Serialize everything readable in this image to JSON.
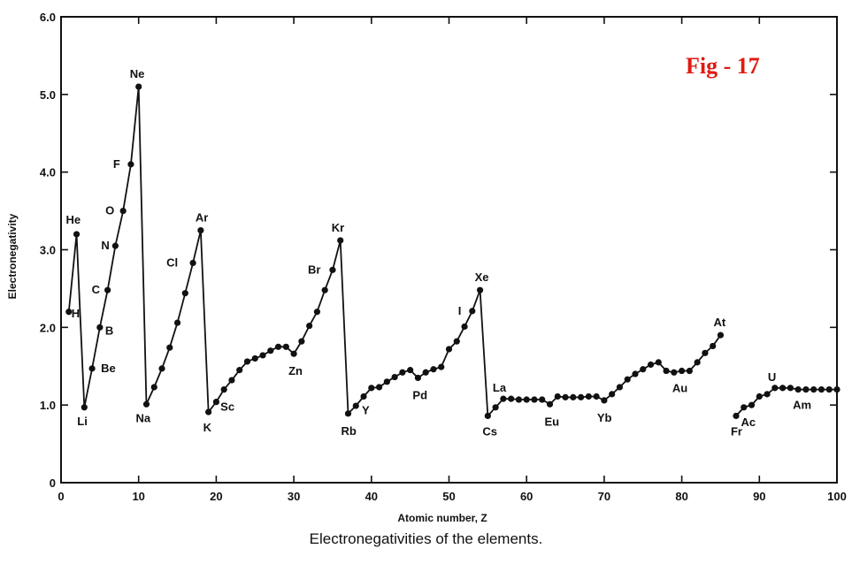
{
  "figure_label": "Fig - 17",
  "caption": "Electronegativities of the elements.",
  "chart_data": {
    "type": "line",
    "title": "",
    "xlabel": "Atomic number, Z",
    "ylabel": "Electronegativity",
    "xlim": [
      0,
      100
    ],
    "ylim": [
      0,
      6.0
    ],
    "x_ticks": [
      0,
      10,
      20,
      30,
      40,
      50,
      60,
      70,
      80,
      90,
      100
    ],
    "y_ticks": [
      0,
      1.0,
      2.0,
      3.0,
      4.0,
      5.0,
      6.0
    ],
    "x_tick_labels": [
      "0",
      "10",
      "20",
      "30",
      "40",
      "50",
      "60",
      "70",
      "80",
      "90",
      "100"
    ],
    "y_tick_labels": [
      "0",
      "1.0",
      "2.0",
      "3.0",
      "4.0",
      "5.0",
      "6.0"
    ],
    "grid": false,
    "segments": [
      {
        "x": [
          1,
          2,
          3,
          4,
          5,
          6,
          7,
          8,
          9,
          10,
          11,
          12,
          13,
          14,
          15,
          16,
          17,
          18,
          19,
          20,
          21,
          22,
          23,
          24,
          25,
          26,
          27,
          28,
          29,
          30,
          31,
          32,
          33,
          34,
          35,
          36,
          37,
          38,
          39,
          40,
          41,
          42,
          43,
          44,
          45,
          46,
          47,
          48,
          49,
          50,
          51,
          52,
          53,
          54,
          55,
          56,
          57,
          58,
          59,
          60,
          61,
          62,
          63,
          64,
          65,
          66,
          67,
          68,
          69,
          70,
          71,
          72,
          73,
          74,
          75,
          76,
          77,
          78,
          79,
          80,
          81,
          82,
          83,
          84,
          85
        ],
        "y": [
          2.2,
          3.2,
          0.97,
          1.47,
          2.0,
          2.48,
          3.05,
          3.5,
          4.1,
          5.1,
          1.01,
          1.23,
          1.47,
          1.74,
          2.06,
          2.44,
          2.83,
          3.25,
          0.91,
          1.04,
          1.2,
          1.32,
          1.45,
          1.56,
          1.6,
          1.64,
          1.7,
          1.75,
          1.75,
          1.66,
          1.82,
          2.02,
          2.2,
          2.48,
          2.74,
          3.12,
          0.89,
          0.99,
          1.11,
          1.22,
          1.23,
          1.3,
          1.36,
          1.42,
          1.45,
          1.35,
          1.42,
          1.46,
          1.49,
          1.72,
          1.82,
          2.01,
          2.21,
          2.48,
          0.86,
          0.97,
          1.08,
          1.08,
          1.07,
          1.07,
          1.07,
          1.07,
          1.01,
          1.11,
          1.1,
          1.1,
          1.1,
          1.11,
          1.11,
          1.06,
          1.14,
          1.23,
          1.33,
          1.4,
          1.46,
          1.52,
          1.55,
          1.44,
          1.42,
          1.44,
          1.44,
          1.55,
          1.67,
          1.76,
          1.9
        ]
      },
      {
        "x": [
          87,
          88,
          89,
          90,
          91,
          92,
          93,
          94,
          95,
          96,
          97,
          98,
          99,
          100
        ],
        "y": [
          0.86,
          0.97,
          1.0,
          1.11,
          1.14,
          1.22,
          1.22,
          1.22,
          1.2,
          1.2,
          1.2,
          1.2,
          1.2,
          1.2
        ]
      }
    ],
    "point_labels": [
      {
        "text": "H",
        "z": 1
      },
      {
        "text": "He",
        "z": 2
      },
      {
        "text": "Li",
        "z": 3
      },
      {
        "text": "Be",
        "z": 4
      },
      {
        "text": "B",
        "z": 5
      },
      {
        "text": "C",
        "z": 6
      },
      {
        "text": "N",
        "z": 7
      },
      {
        "text": "O",
        "z": 8
      },
      {
        "text": "F",
        "z": 9
      },
      {
        "text": "Ne",
        "z": 10
      },
      {
        "text": "Na",
        "z": 11
      },
      {
        "text": "Cl",
        "z": 17
      },
      {
        "text": "Ar",
        "z": 18
      },
      {
        "text": "K",
        "z": 19
      },
      {
        "text": "Sc",
        "z": 21
      },
      {
        "text": "Zn",
        "z": 30
      },
      {
        "text": "Br",
        "z": 35
      },
      {
        "text": "Kr",
        "z": 36
      },
      {
        "text": "Rb",
        "z": 37
      },
      {
        "text": "Y",
        "z": 39
      },
      {
        "text": "Pd",
        "z": 46
      },
      {
        "text": "I",
        "z": 53
      },
      {
        "text": "Xe",
        "z": 54
      },
      {
        "text": "Cs",
        "z": 55
      },
      {
        "text": "La",
        "z": 57
      },
      {
        "text": "Eu",
        "z": 63
      },
      {
        "text": "Yb",
        "z": 70
      },
      {
        "text": "Au",
        "z": 79
      },
      {
        "text": "At",
        "z": 85
      },
      {
        "text": "Fr",
        "z": 87
      },
      {
        "text": "Ac",
        "z": 89
      },
      {
        "text": "U",
        "z": 92
      },
      {
        "text": "Am",
        "z": 95
      }
    ]
  }
}
